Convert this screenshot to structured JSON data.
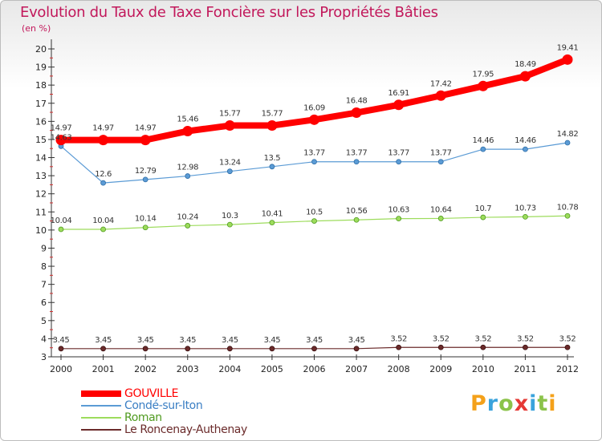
{
  "title": "Evolution du Taux de Taxe Foncière sur les Propriétés Bâties",
  "unit": "(en %)",
  "logo": {
    "letters": [
      "P",
      "r",
      "o",
      "x",
      "i",
      "t",
      "i"
    ],
    "colors": [
      "#f4a11a",
      "#3aa3dc",
      "#8bc34a",
      "#e53935",
      "#3aa3dc",
      "#8bc34a",
      "#f4a11a"
    ]
  },
  "chart_data": {
    "type": "line",
    "title": "Evolution du Taux de Taxe Foncière sur les Propriétés Bâties",
    "ylabel": "(en %)",
    "ylim": [
      3,
      20
    ],
    "yticks": [
      3,
      4,
      5,
      6,
      7,
      8,
      9,
      10,
      11,
      12,
      13,
      14,
      15,
      16,
      17,
      18,
      19,
      20
    ],
    "x": [
      "2000",
      "2001",
      "2002",
      "2003",
      "2004",
      "2005",
      "2006",
      "2007",
      "2008",
      "2009",
      "2010",
      "2011",
      "2012"
    ],
    "series": [
      {
        "name": "GOUVILLE",
        "color": "#ff0000",
        "values": [
          14.97,
          14.97,
          14.97,
          15.46,
          15.77,
          15.77,
          16.09,
          16.48,
          16.91,
          17.42,
          17.95,
          18.49,
          19.41
        ],
        "labels": [
          "14.97",
          "14.97",
          "14.97",
          "15.46",
          "15.77",
          "15.77",
          "16.09",
          "16.48",
          "16.91",
          "17.42",
          "17.95",
          "18.49",
          "19.41"
        ]
      },
      {
        "name": "Condé-sur-Iton",
        "color": "#5b9bd5",
        "values": [
          14.63,
          12.6,
          12.79,
          12.98,
          13.24,
          13.5,
          13.77,
          13.77,
          13.77,
          13.77,
          14.46,
          14.46,
          14.82
        ],
        "labels": [
          "14.63",
          "12.6",
          "12.79",
          "12.98",
          "13.24",
          "13.5",
          "13.77",
          "13.77",
          "13.77",
          "13.77",
          "14.46",
          "14.46",
          "14.82"
        ]
      },
      {
        "name": "Roman",
        "color": "#9ddc5c",
        "values": [
          10.04,
          10.04,
          10.14,
          10.24,
          10.3,
          10.41,
          10.5,
          10.56,
          10.63,
          10.64,
          10.7,
          10.73,
          10.78
        ],
        "labels": [
          "10.04",
          "10.04",
          "10.14",
          "10.24",
          "10.3",
          "10.41",
          "10.5",
          "10.56",
          "10.63",
          "10.64",
          "10.7",
          "10.73",
          "10.78"
        ]
      },
      {
        "name": "Le Roncenay-Authenay",
        "color": "#6b2b2b",
        "values": [
          3.45,
          3.45,
          3.45,
          3.45,
          3.45,
          3.45,
          3.45,
          3.45,
          3.52,
          3.52,
          3.52,
          3.52,
          3.52
        ],
        "labels": [
          "3.45",
          "3.45",
          "3.45",
          "3.45",
          "3.45",
          "3.45",
          "3.45",
          "3.45",
          "3.52",
          "3.52",
          "3.52",
          "3.52",
          "3.52"
        ]
      }
    ],
    "grid": false,
    "legend": "bottom-left"
  }
}
